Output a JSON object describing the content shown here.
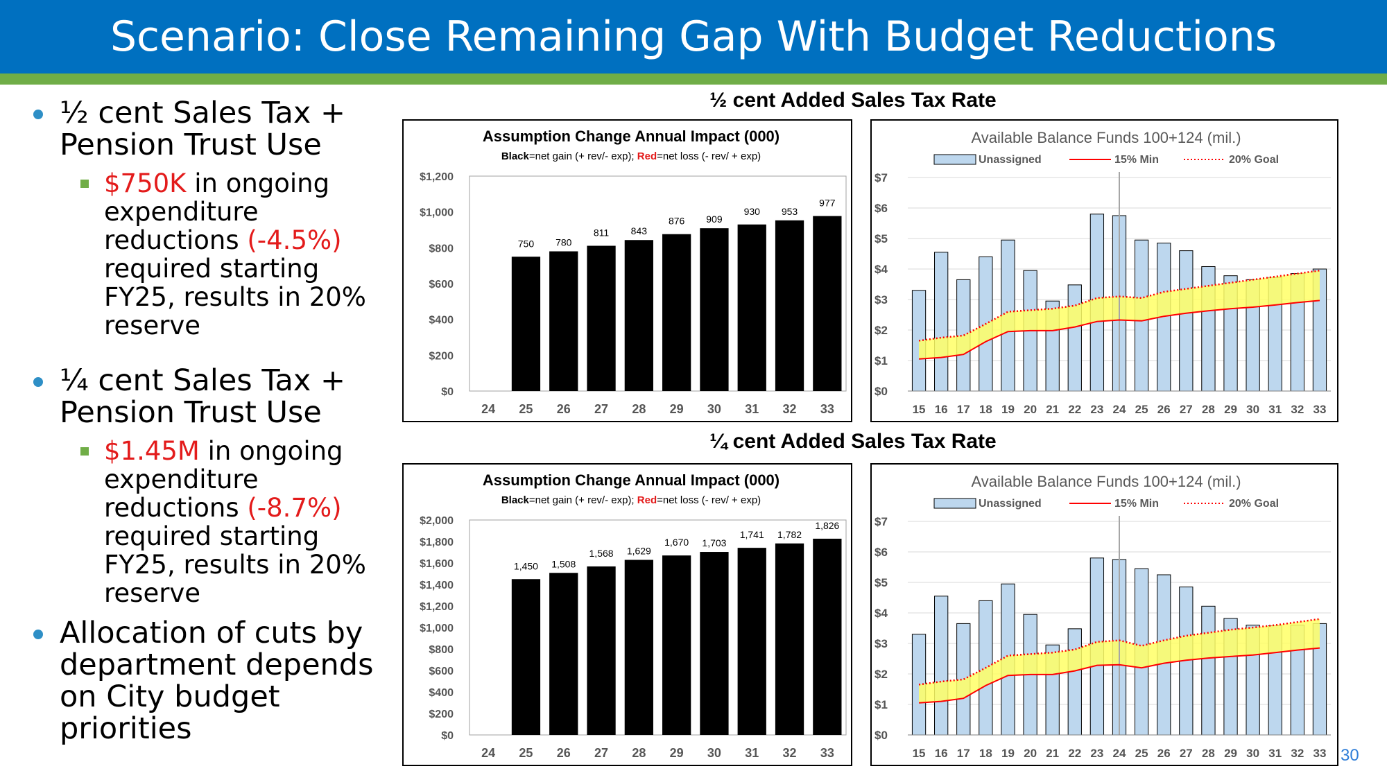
{
  "slide": {
    "title": "Scenario: Close Remaining Gap With Budget Reductions",
    "page_number": "30",
    "colors": {
      "header": "#0070c0",
      "stripe": "#70ad47",
      "bullet": "#2e8fc6",
      "emphasis": "#e31b1b"
    }
  },
  "bullets": [
    {
      "text": "½ cent Sales Tax + Pension Trust Use",
      "sub": {
        "amount": "$750K",
        "mid": " in ongoing expenditure reductions ",
        "pct": "(-4.5%)",
        "rest": " required starting FY25, results in 20% reserve"
      }
    },
    {
      "text": "¼ cent Sales Tax + Pension Trust Use",
      "sub": {
        "amount": "$1.45M",
        "mid": " in ongoing expenditure reductions ",
        "pct": "(-8.7%)",
        "rest": " required starting FY25, results in 20% reserve"
      }
    },
    {
      "text": "Allocation of cuts by department depends on City budget priorities"
    }
  ],
  "sections": [
    {
      "title": "½ cent Added Sales Tax Rate"
    },
    {
      "title": "¼ cent Added Sales Tax Rate"
    }
  ],
  "chart_data": [
    {
      "type": "bar",
      "title": "Assumption Change Annual Impact (000)",
      "subtitle": {
        "black_label": "Black",
        "black_text": "=net gain (+ rev/- exp); ",
        "red_label": "Red",
        "red_text": "=net loss (- rev/ + exp)"
      },
      "categories": [
        "24",
        "25",
        "26",
        "27",
        "28",
        "29",
        "30",
        "31",
        "32",
        "33"
      ],
      "values": [
        null,
        750,
        780,
        811,
        843,
        876,
        909,
        930,
        953,
        977
      ],
      "data_labels": [
        "",
        "750",
        "780",
        "811",
        "843",
        "876",
        "909",
        "930",
        "953",
        "977"
      ],
      "ylim": [
        0,
        1200
      ],
      "yticks": [
        0,
        200,
        400,
        600,
        800,
        1000,
        1200
      ],
      "ytick_labels": [
        "$0",
        "$200",
        "$400",
        "$600",
        "$800",
        "$1,000",
        "$1,200"
      ],
      "bar_color": "#000000"
    },
    {
      "type": "bar",
      "title": "Available Balance Funds 100+124 (mil.)",
      "legend": [
        "Unassigned",
        "15% Min",
        "20% Goal"
      ],
      "categories": [
        "15",
        "16",
        "17",
        "18",
        "19",
        "20",
        "21",
        "22",
        "23",
        "24",
        "25",
        "26",
        "27",
        "28",
        "29",
        "30",
        "31",
        "32",
        "33"
      ],
      "series": [
        {
          "name": "Unassigned",
          "kind": "bar",
          "color": "#bdd7ee",
          "values": [
            3.3,
            4.55,
            3.65,
            4.4,
            4.95,
            3.95,
            2.95,
            3.48,
            5.8,
            5.75,
            4.95,
            4.85,
            4.6,
            4.08,
            3.78,
            3.65,
            3.72,
            3.85,
            4.0
          ]
        },
        {
          "name": "15% Min",
          "kind": "line",
          "color": "#ff0000",
          "values": [
            1.05,
            1.1,
            1.2,
            1.62,
            1.95,
            1.98,
            1.98,
            2.1,
            2.28,
            2.33,
            2.3,
            2.45,
            2.55,
            2.63,
            2.7,
            2.75,
            2.82,
            2.9,
            2.97
          ]
        },
        {
          "name": "20% Goal",
          "kind": "dotted-line",
          "color": "#ff0000",
          "values": [
            1.65,
            1.75,
            1.82,
            2.2,
            2.6,
            2.65,
            2.7,
            2.8,
            3.05,
            3.1,
            3.05,
            3.25,
            3.35,
            3.45,
            3.55,
            3.65,
            3.75,
            3.85,
            3.95
          ]
        }
      ],
      "fill_between_color": "#ffff66",
      "divider_at": "24",
      "ylim": [
        0,
        7
      ],
      "ytick_labels": [
        "$0",
        "$1",
        "$2",
        "$3",
        "$4",
        "$5",
        "$6",
        "$7"
      ],
      "legend_position": "top"
    },
    {
      "type": "bar",
      "title": "Assumption Change Annual Impact (000)",
      "subtitle": {
        "black_label": "Black",
        "black_text": "=net gain (+ rev/- exp); ",
        "red_label": "Red",
        "red_text": "=net loss (- rev/ + exp)"
      },
      "categories": [
        "24",
        "25",
        "26",
        "27",
        "28",
        "29",
        "30",
        "31",
        "32",
        "33"
      ],
      "values": [
        null,
        1450,
        1508,
        1568,
        1629,
        1670,
        1703,
        1741,
        1782,
        1826
      ],
      "data_labels": [
        "",
        "1,450",
        "1,508",
        "1,568",
        "1,629",
        "1,670",
        "1,703",
        "1,741",
        "1,782",
        "1,826"
      ],
      "ylim": [
        0,
        2000
      ],
      "yticks": [
        0,
        200,
        400,
        600,
        800,
        1000,
        1200,
        1400,
        1600,
        1800,
        2000
      ],
      "ytick_labels": [
        "$0",
        "$200",
        "$400",
        "$600",
        "$800",
        "$1,000",
        "$1,200",
        "$1,400",
        "$1,600",
        "$1,800",
        "$2,000"
      ],
      "bar_color": "#000000"
    },
    {
      "type": "bar",
      "title": "Available Balance Funds 100+124 (mil.)",
      "legend": [
        "Unassigned",
        "15% Min",
        "20% Goal"
      ],
      "categories": [
        "15",
        "16",
        "17",
        "18",
        "19",
        "20",
        "21",
        "22",
        "23",
        "24",
        "25",
        "26",
        "27",
        "28",
        "29",
        "30",
        "31",
        "32",
        "33"
      ],
      "series": [
        {
          "name": "Unassigned",
          "kind": "bar",
          "color": "#bdd7ee",
          "values": [
            3.3,
            4.55,
            3.65,
            4.4,
            4.95,
            3.95,
            2.95,
            3.48,
            5.8,
            5.75,
            5.45,
            5.25,
            4.85,
            4.22,
            3.82,
            3.6,
            3.58,
            3.6,
            3.65
          ]
        },
        {
          "name": "15% Min",
          "kind": "line",
          "color": "#ff0000",
          "values": [
            1.05,
            1.1,
            1.2,
            1.62,
            1.95,
            1.98,
            1.98,
            2.1,
            2.28,
            2.3,
            2.2,
            2.35,
            2.45,
            2.52,
            2.57,
            2.62,
            2.7,
            2.78,
            2.85
          ]
        },
        {
          "name": "20% Goal",
          "kind": "dotted-line",
          "color": "#ff0000",
          "values": [
            1.65,
            1.75,
            1.82,
            2.2,
            2.6,
            2.65,
            2.7,
            2.8,
            3.05,
            3.1,
            2.92,
            3.1,
            3.25,
            3.35,
            3.45,
            3.52,
            3.6,
            3.7,
            3.8
          ]
        }
      ],
      "fill_between_color": "#ffff66",
      "divider_at": "24",
      "ylim": [
        0,
        7
      ],
      "ytick_labels": [
        "$0",
        "$1",
        "$2",
        "$3",
        "$4",
        "$5",
        "$6",
        "$7"
      ],
      "legend_position": "top"
    }
  ]
}
